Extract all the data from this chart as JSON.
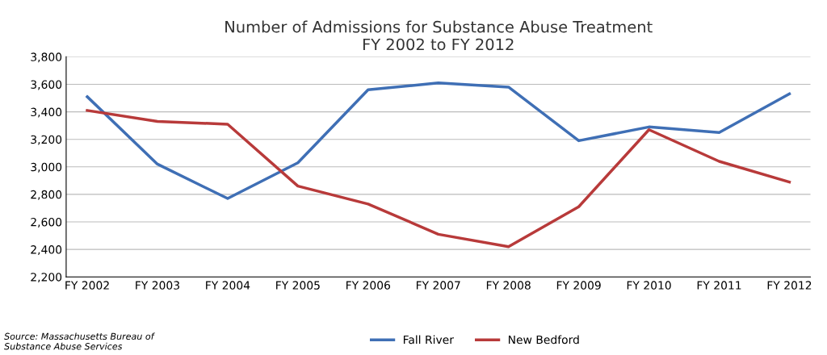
{
  "chart_data": {
    "type": "line",
    "title": "Number of Admissions for Substance Abuse Treatment\nFY 2002 to FY 2012",
    "categories": [
      "FY 2002",
      "FY 2003",
      "FY 2004",
      "FY 2005",
      "FY 2006",
      "FY 2007",
      "FY 2008",
      "FY 2009",
      "FY 2010",
      "FY 2011",
      "FY 2012"
    ],
    "series": [
      {
        "name": "Fall River",
        "color": "#3f6fb5",
        "values": [
          3510,
          3020,
          2770,
          3030,
          3560,
          3610,
          3580,
          3190,
          3290,
          3250,
          3530
        ]
      },
      {
        "name": "New Bedford",
        "color": "#b83a3a",
        "values": [
          3410,
          3330,
          3310,
          2860,
          2730,
          2510,
          2420,
          2710,
          3270,
          3040,
          2890
        ]
      }
    ],
    "ylim": [
      2200,
      3800
    ],
    "yticks": [
      {
        "value": 2200,
        "label": "2,200"
      },
      {
        "value": 2400,
        "label": "2,400"
      },
      {
        "value": 2600,
        "label": "2,600"
      },
      {
        "value": 2800,
        "label": "2,800"
      },
      {
        "value": 3000,
        "label": "3,000"
      },
      {
        "value": 3200,
        "label": "3,200"
      },
      {
        "value": 3400,
        "label": "3,400"
      },
      {
        "value": 3600,
        "label": "3,600"
      },
      {
        "value": 3800,
        "label": "3,800"
      }
    ],
    "grid": "y",
    "legend": "bottom",
    "marker": "none",
    "line_style": "solid",
    "annotations": [
      "Source: Massachusetts Bureau of\nSubstance Abuse Services"
    ]
  }
}
